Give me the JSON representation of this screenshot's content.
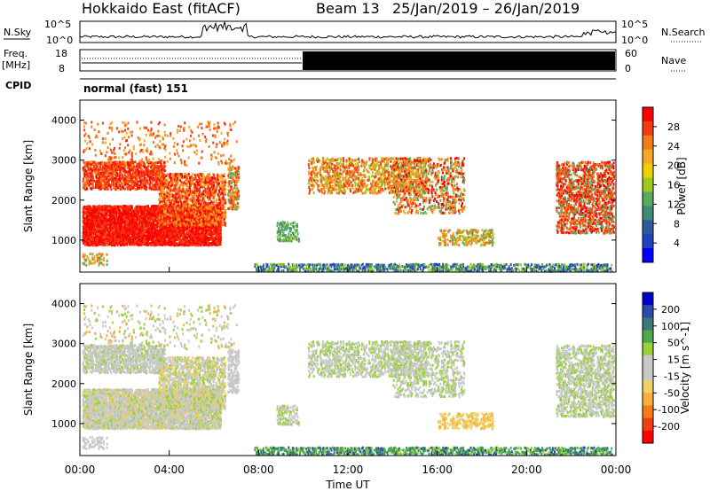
{
  "header": {
    "site": "Hokkaido East (fitACF)",
    "beam": "Beam 13",
    "dates": "25/Jan/2019 – 26/Jan/2019"
  },
  "panels": {
    "nsky_label": "N.Sky",
    "nsky_ticks": [
      "10^5",
      "10^0"
    ],
    "nsearch_label": "N.Search",
    "nsearch_ticks": [
      "10^5",
      "10^0"
    ],
    "freq_label_1": "Freq.",
    "freq_label_2": "[MHz]",
    "freq_ticks": [
      "18",
      "8"
    ],
    "nave_label": "Nave",
    "nave_ticks": [
      "60",
      "0"
    ],
    "cpid_label": "CPID",
    "cpid_value": "normal (fast) 151"
  },
  "colorbars": {
    "power": {
      "label": "Power [dB]",
      "ticks": [
        "28",
        "24",
        "20",
        "16",
        "12",
        "8",
        "4"
      ],
      "colors": [
        "#ff0000",
        "#f23c10",
        "#f57a18",
        "#f5a623",
        "#f0d000",
        "#9cc820",
        "#58a860",
        "#3c8a78",
        "#305a9a",
        "#2040c0",
        "#0000ff"
      ]
    },
    "velocity": {
      "label": "Velocity [m s^-1]",
      "ticks": [
        "200",
        "100",
        "50",
        "15",
        "-15",
        "-50",
        "-100",
        "-200"
      ],
      "colors": [
        "#0000cc",
        "#2a4ca8",
        "#3a7a7a",
        "#4caa4c",
        "#9ad03a",
        "#c8c8c8",
        "#c8c8c8",
        "#f0d060",
        "#f5b040",
        "#f57a18",
        "#f04010",
        "#ff0000"
      ]
    }
  },
  "chart_data": [
    {
      "type": "heatmap",
      "name": "power",
      "ylabel": "Slant Range [km]",
      "yticks": [
        "4000",
        "3000",
        "2000",
        "1000"
      ],
      "ylim": [
        200,
        4500
      ],
      "xlim": [
        "00:00",
        "24:00"
      ]
    },
    {
      "type": "heatmap",
      "name": "velocity",
      "ylabel": "Slant Range [km]",
      "yticks": [
        "4000",
        "3000",
        "2000",
        "1000"
      ],
      "ylim": [
        200,
        4500
      ],
      "xlim": [
        "00:00",
        "24:00"
      ],
      "xlabel": "Time UT",
      "xticks": [
        "00:00",
        "04:00",
        "08:00",
        "12:00",
        "16:00",
        "20:00",
        "00:00"
      ]
    }
  ]
}
